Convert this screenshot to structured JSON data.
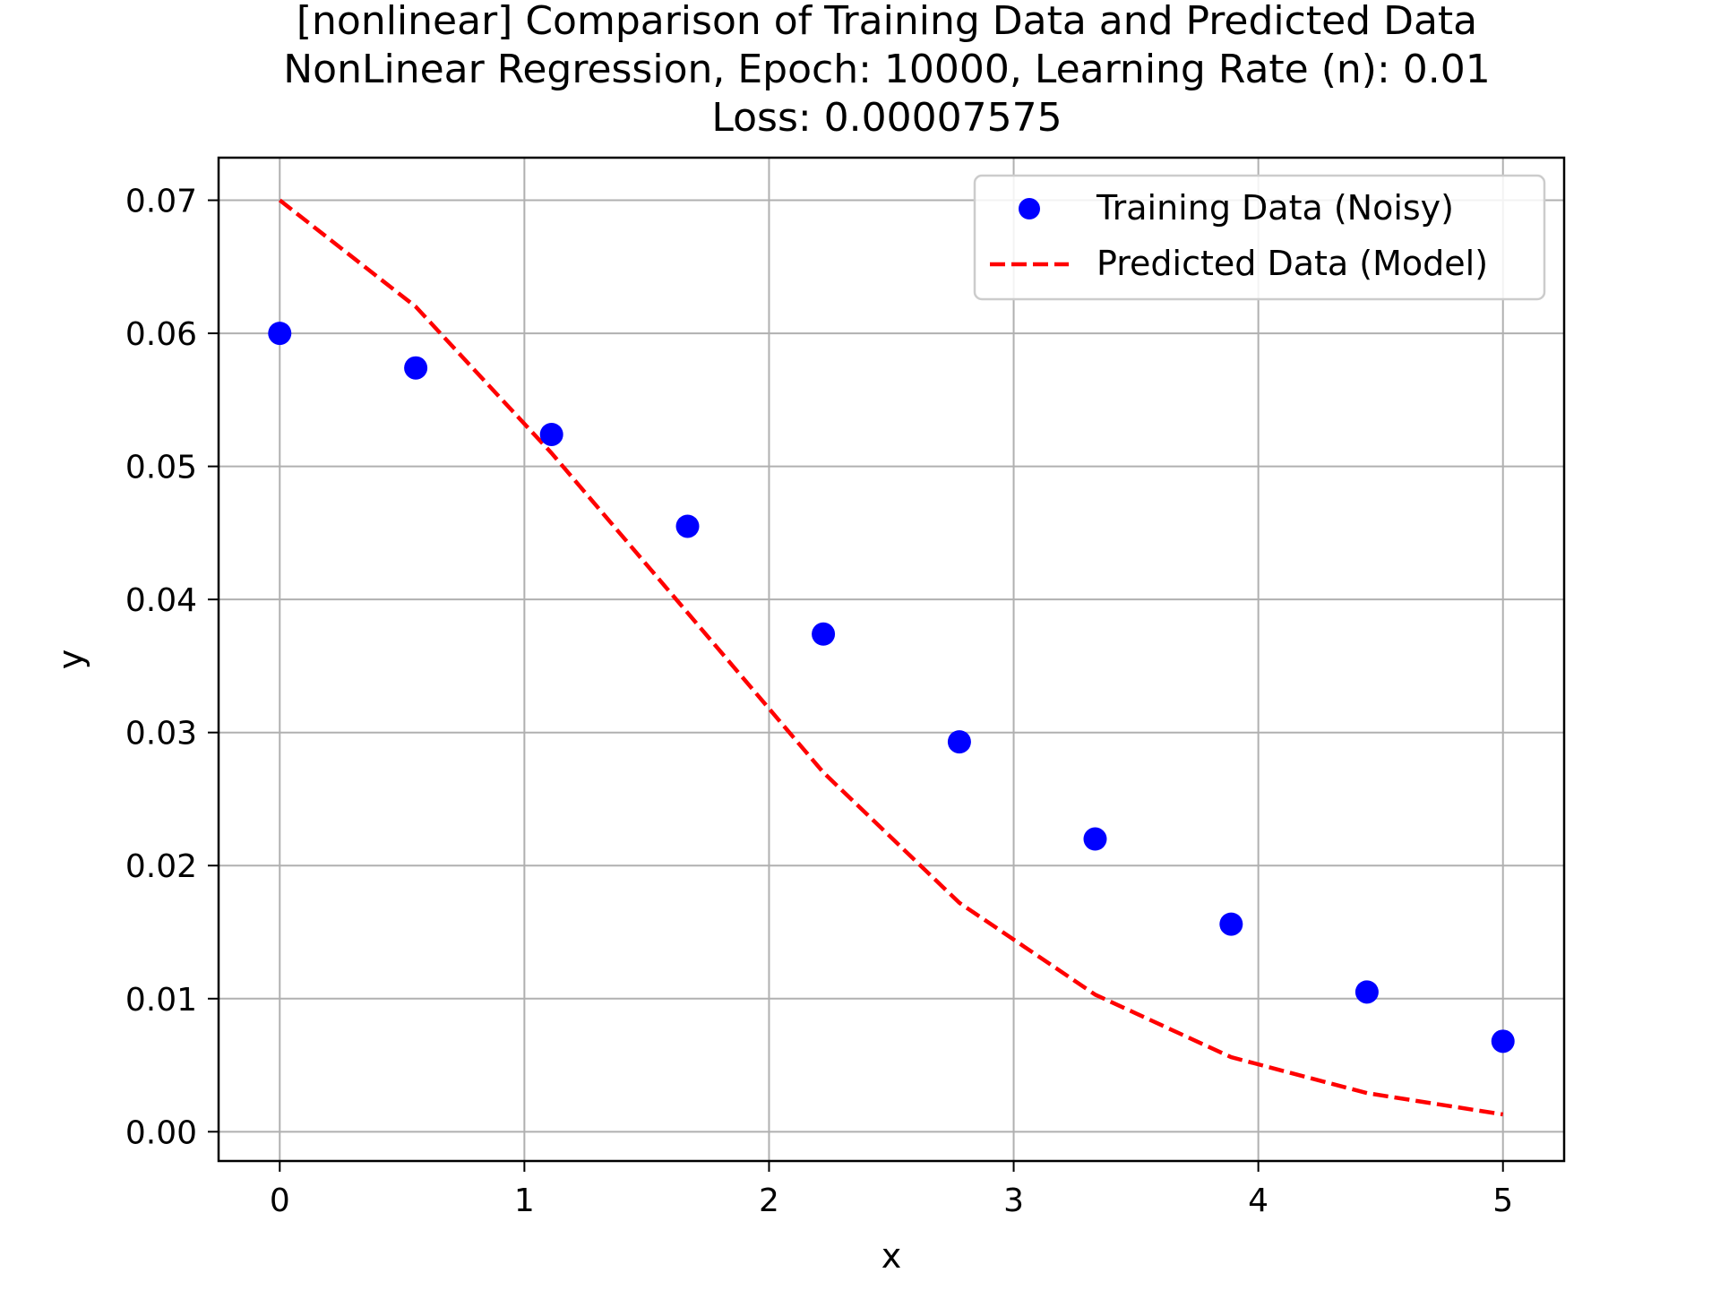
{
  "chart_data": {
    "type": "scatter",
    "title_lines": [
      "[nonlinear] Comparison of Training Data and Predicted Data",
      "NonLinear Regression, Epoch: 10000, Learning Rate (n): 0.01",
      "Loss: 0.00007575"
    ],
    "xlabel": "x",
    "ylabel": "y",
    "xlim": [
      -0.25,
      5.25
    ],
    "ylim": [
      -0.0022,
      0.0732
    ],
    "xticks": [
      0,
      1,
      2,
      3,
      4,
      5
    ],
    "xtick_labels": [
      "0",
      "1",
      "2",
      "3",
      "4",
      "5"
    ],
    "yticks": [
      0.0,
      0.01,
      0.02,
      0.03,
      0.04,
      0.05,
      0.06,
      0.07
    ],
    "ytick_labels": [
      "0.00",
      "0.01",
      "0.02",
      "0.03",
      "0.04",
      "0.05",
      "0.06",
      "0.07"
    ],
    "grid": true,
    "legend_position": "top-right",
    "series": [
      {
        "name": "Training Data (Noisy)",
        "kind": "scatter",
        "color": "#0000ff",
        "x": [
          0.0,
          0.556,
          1.111,
          1.667,
          2.222,
          2.778,
          3.333,
          3.889,
          4.444,
          5.0
        ],
        "y": [
          0.06,
          0.0574,
          0.0524,
          0.0455,
          0.0374,
          0.0293,
          0.022,
          0.0156,
          0.0105,
          0.0068
        ]
      },
      {
        "name": "Predicted Data (Model)",
        "kind": "line",
        "style": "dashed",
        "color": "#ff0000",
        "x": [
          0.0,
          0.556,
          1.111,
          1.667,
          2.222,
          2.778,
          3.333,
          3.889,
          4.444,
          5.0
        ],
        "y": [
          0.07,
          0.062,
          0.051,
          0.039,
          0.027,
          0.0172,
          0.0103,
          0.0056,
          0.0029,
          0.0013
        ]
      }
    ]
  }
}
